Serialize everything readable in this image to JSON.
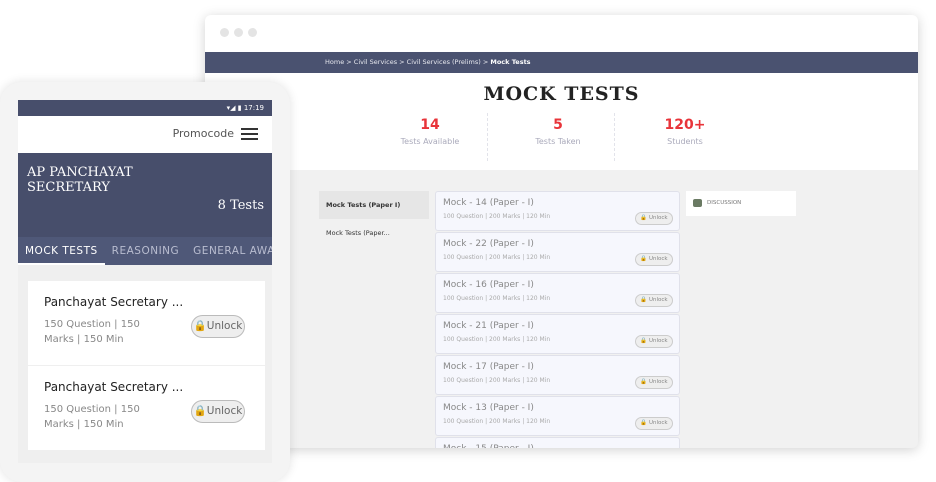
{
  "desktop": {
    "breadcrumb": [
      "Home",
      "Civil Services",
      "Civil Services (Prelims)",
      "Mock Tests"
    ],
    "title": "MOCK TESTS",
    "stats": [
      {
        "value": "14",
        "label": "Tests Available"
      },
      {
        "value": "5",
        "label": "Tests Taken"
      },
      {
        "value": "120+",
        "label": "Students"
      }
    ],
    "sidebar": [
      "Mock Tests (Paper I)",
      "Mock Tests (Paper..."
    ],
    "tests": [
      {
        "title": "Mock - 14 (Paper - I)",
        "meta": "100 Question |  200 Marks | 120 Min"
      },
      {
        "title": "Mock - 22 (Paper - I)",
        "meta": "100 Question |  200 Marks | 120 Min"
      },
      {
        "title": "Mock - 16 (Paper - I)",
        "meta": "100 Question |  200 Marks | 120 Min"
      },
      {
        "title": "Mock - 21 (Paper - I)",
        "meta": "100 Question |  200 Marks | 120 Min"
      },
      {
        "title": "Mock - 17 (Paper - I)",
        "meta": "100 Question |  200 Marks | 120 Min"
      },
      {
        "title": "Mock - 13 (Paper - I)",
        "meta": "100 Question |  200 Marks | 120 Min"
      },
      {
        "title": "Mock - 15 (Paper - I)",
        "meta": ""
      }
    ],
    "unlock_label": "Unlock",
    "discussion_label": "DISCUSSION"
  },
  "phone": {
    "time": "17:19",
    "promocode": "Promocode",
    "title": "AP PANCHAYAT SECRETARY",
    "count": "8 Tests",
    "tabs": [
      "MOCK TESTS",
      "REASONING",
      "GENERAL AWARENESS"
    ],
    "cards": [
      {
        "title": "Panchayat Secretary ...",
        "meta": "150 Question |  150 Marks | 150 Min"
      },
      {
        "title": "Panchayat Secretary ...",
        "meta": "150 Question |  150 Marks | 150 Min"
      }
    ],
    "unlock_label": "Unlock"
  },
  "colors": {
    "navy": "#474e6b",
    "accent": "#e8343a"
  }
}
